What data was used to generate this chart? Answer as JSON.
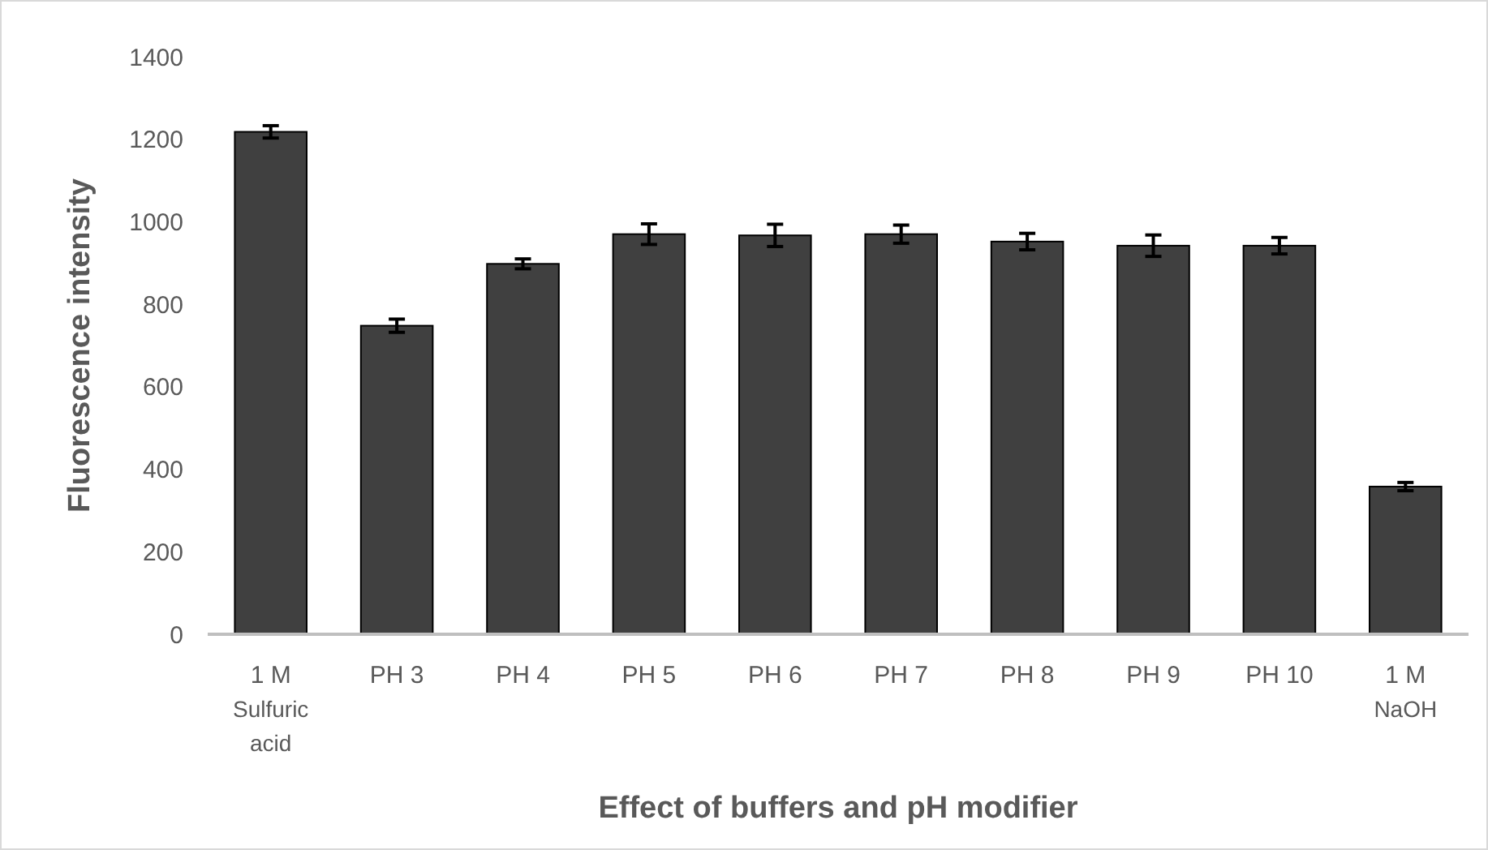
{
  "chart_data": {
    "type": "bar",
    "xlabel": "Effect of buffers and pH modifier",
    "ylabel": "Fluorescence intensity",
    "categories": [
      "1 M\nSulfuric\nacid",
      "PH 3",
      "PH 4",
      "PH 5",
      "PH 6",
      "PH 7",
      "PH 8",
      "PH 9",
      "PH 10",
      "1 M\nNaOH"
    ],
    "values": [
      1218,
      748,
      898,
      970,
      967,
      970,
      952,
      942,
      942,
      358
    ],
    "errors": [
      15,
      16,
      12,
      25,
      27,
      22,
      20,
      26,
      20,
      10
    ],
    "color": "#404040",
    "ylim": [
      0,
      1400
    ],
    "yticks": [
      0,
      200,
      400,
      600,
      800,
      1000,
      1200,
      1400
    ],
    "grid": false
  }
}
